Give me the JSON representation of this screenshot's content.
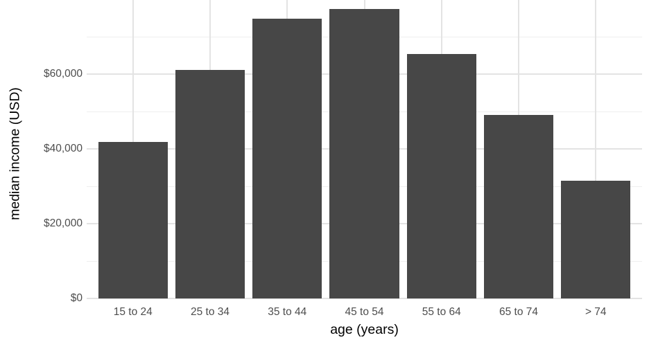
{
  "chart_data": {
    "type": "bar",
    "title": "",
    "xlabel": "age (years)",
    "ylabel": "median income (USD)",
    "categories": [
      "15 to 24",
      "25 to 34",
      "35 to 44",
      "45 to 54",
      "55 to 64",
      "65 to 74",
      "> 74"
    ],
    "values": [
      41800,
      61200,
      74900,
      77500,
      65300,
      49100,
      31400
    ],
    "y_major_ticks": [
      {
        "value": 0,
        "label": "$0"
      },
      {
        "value": 20000,
        "label": "$20,000"
      },
      {
        "value": 40000,
        "label": "$40,000"
      },
      {
        "value": 60000,
        "label": "$60,000"
      }
    ],
    "y_minor_ticks": [
      10000,
      30000,
      50000,
      70000
    ],
    "ylim": [
      0,
      79800
    ],
    "grid": "major and minor horizontal, major vertical at category centers",
    "legend": false,
    "colors": {
      "bar_fill": "#474747",
      "grid_major": "#e3e3e3",
      "grid_minor": "#efefef",
      "tick_label": "#4d4d4d",
      "axis_title": "#000000",
      "background": "#ffffff"
    }
  }
}
